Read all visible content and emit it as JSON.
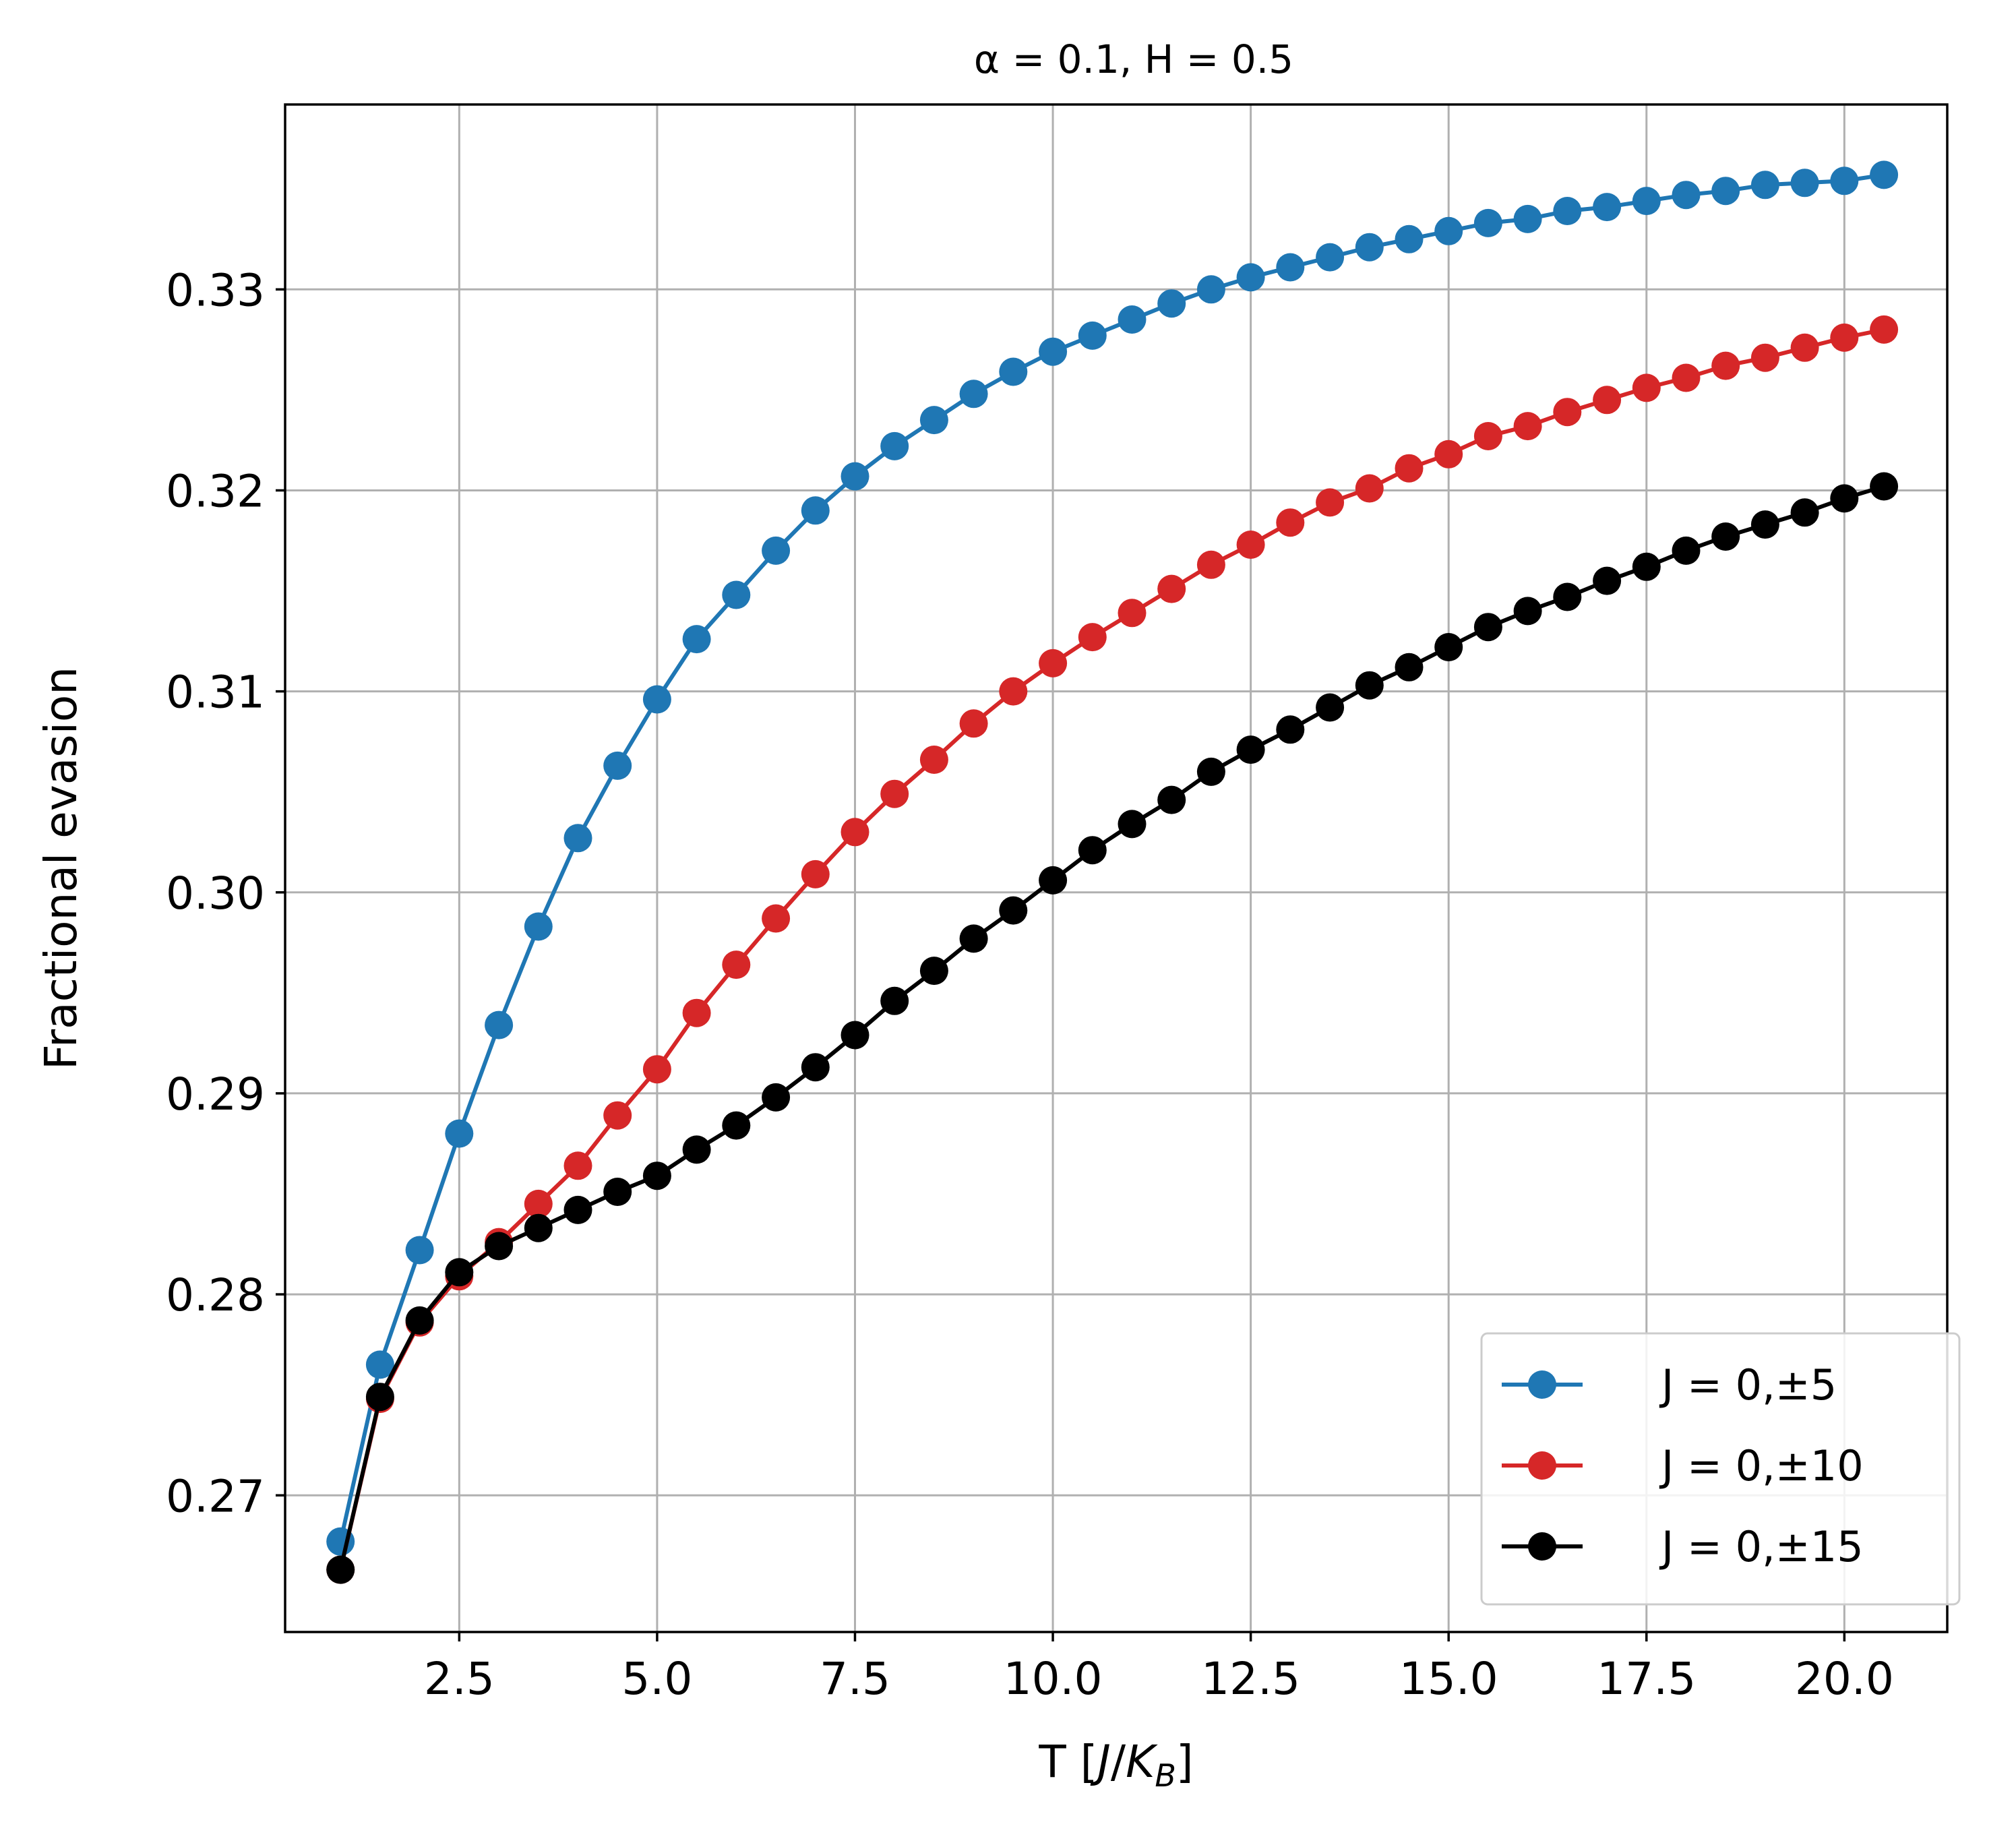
{
  "chart_data": {
    "type": "line",
    "title": "α = 0.1, H = 0.5",
    "xlabel": {
      "prefix": "T [",
      "var1": "J",
      "slash": "/",
      "var2": "K",
      "sub": "B",
      "suffix": "]"
    },
    "ylabel": "Fractional evasion",
    "xlim": [
      0.3,
      21.3
    ],
    "ylim": [
      0.2632,
      0.3392
    ],
    "xticks": [
      2.5,
      5.0,
      7.5,
      10.0,
      12.5,
      15.0,
      17.5,
      20.0
    ],
    "xtick_labels": [
      "2.5",
      "5.0",
      "7.5",
      "10.0",
      "12.5",
      "15.0",
      "17.5",
      "20.0"
    ],
    "yticks": [
      0.27,
      0.28,
      0.29,
      0.3,
      0.31,
      0.32,
      0.33
    ],
    "ytick_labels": [
      "0.27",
      "0.28",
      "0.29",
      "0.30",
      "0.31",
      "0.32",
      "0.33"
    ],
    "grid": true,
    "legend_position": "lower-right",
    "x": [
      1.0,
      1.5,
      2.0,
      2.5,
      3.0,
      3.5,
      4.0,
      4.5,
      5.0,
      5.5,
      6.0,
      6.5,
      7.0,
      7.5,
      8.0,
      8.5,
      9.0,
      9.5,
      10.0,
      10.5,
      11.0,
      11.5,
      12.0,
      12.5,
      13.0,
      13.5,
      14.0,
      14.5,
      15.0,
      15.5,
      16.0,
      16.5,
      17.0,
      17.5,
      18.0,
      18.5,
      19.0,
      19.5,
      20.0,
      20.5
    ],
    "series": [
      {
        "name": "J = 0,±5",
        "color": "#1f77b4",
        "values": [
          0.2677,
          0.2765,
          0.2822,
          0.288,
          0.2934,
          0.2983,
          0.3027,
          0.3063,
          0.3096,
          0.3126,
          0.3148,
          0.317,
          0.319,
          0.3207,
          0.3222,
          0.3235,
          0.3248,
          0.3259,
          0.3269,
          0.3277,
          0.3285,
          0.3293,
          0.33,
          0.3306,
          0.3311,
          0.3316,
          0.3321,
          0.3325,
          0.3329,
          0.3333,
          0.3335,
          0.3339,
          0.3341,
          0.3344,
          0.3347,
          0.3349,
          0.3352,
          0.3353,
          0.3354,
          0.3357
        ]
      },
      {
        "name": "J = 0,±10",
        "color": "#d62728",
        "values": [
          0.2663,
          0.2748,
          0.2786,
          0.2809,
          0.2826,
          0.2845,
          0.2864,
          0.2889,
          0.2912,
          0.294,
          0.2964,
          0.2987,
          0.3009,
          0.303,
          0.3049,
          0.3066,
          0.3084,
          0.31,
          0.3114,
          0.3127,
          0.3139,
          0.3151,
          0.3163,
          0.3173,
          0.3184,
          0.3194,
          0.3201,
          0.3211,
          0.3218,
          0.3227,
          0.3232,
          0.3239,
          0.3245,
          0.3251,
          0.3256,
          0.3262,
          0.3266,
          0.3271,
          0.3276,
          0.328
        ]
      },
      {
        "name": "J = 0,±15",
        "color": "#000000",
        "values": [
          0.2663,
          0.2749,
          0.2787,
          0.2811,
          0.2824,
          0.2833,
          0.2842,
          0.2851,
          0.2859,
          0.2872,
          0.2884,
          0.2898,
          0.2913,
          0.2929,
          0.2946,
          0.2961,
          0.2977,
          0.2991,
          0.3006,
          0.3021,
          0.3034,
          0.3046,
          0.306,
          0.3071,
          0.3081,
          0.3092,
          0.3103,
          0.3112,
          0.3122,
          0.3132,
          0.314,
          0.3147,
          0.3155,
          0.3162,
          0.317,
          0.3177,
          0.3183,
          0.3189,
          0.3196,
          0.3202
        ]
      }
    ]
  }
}
